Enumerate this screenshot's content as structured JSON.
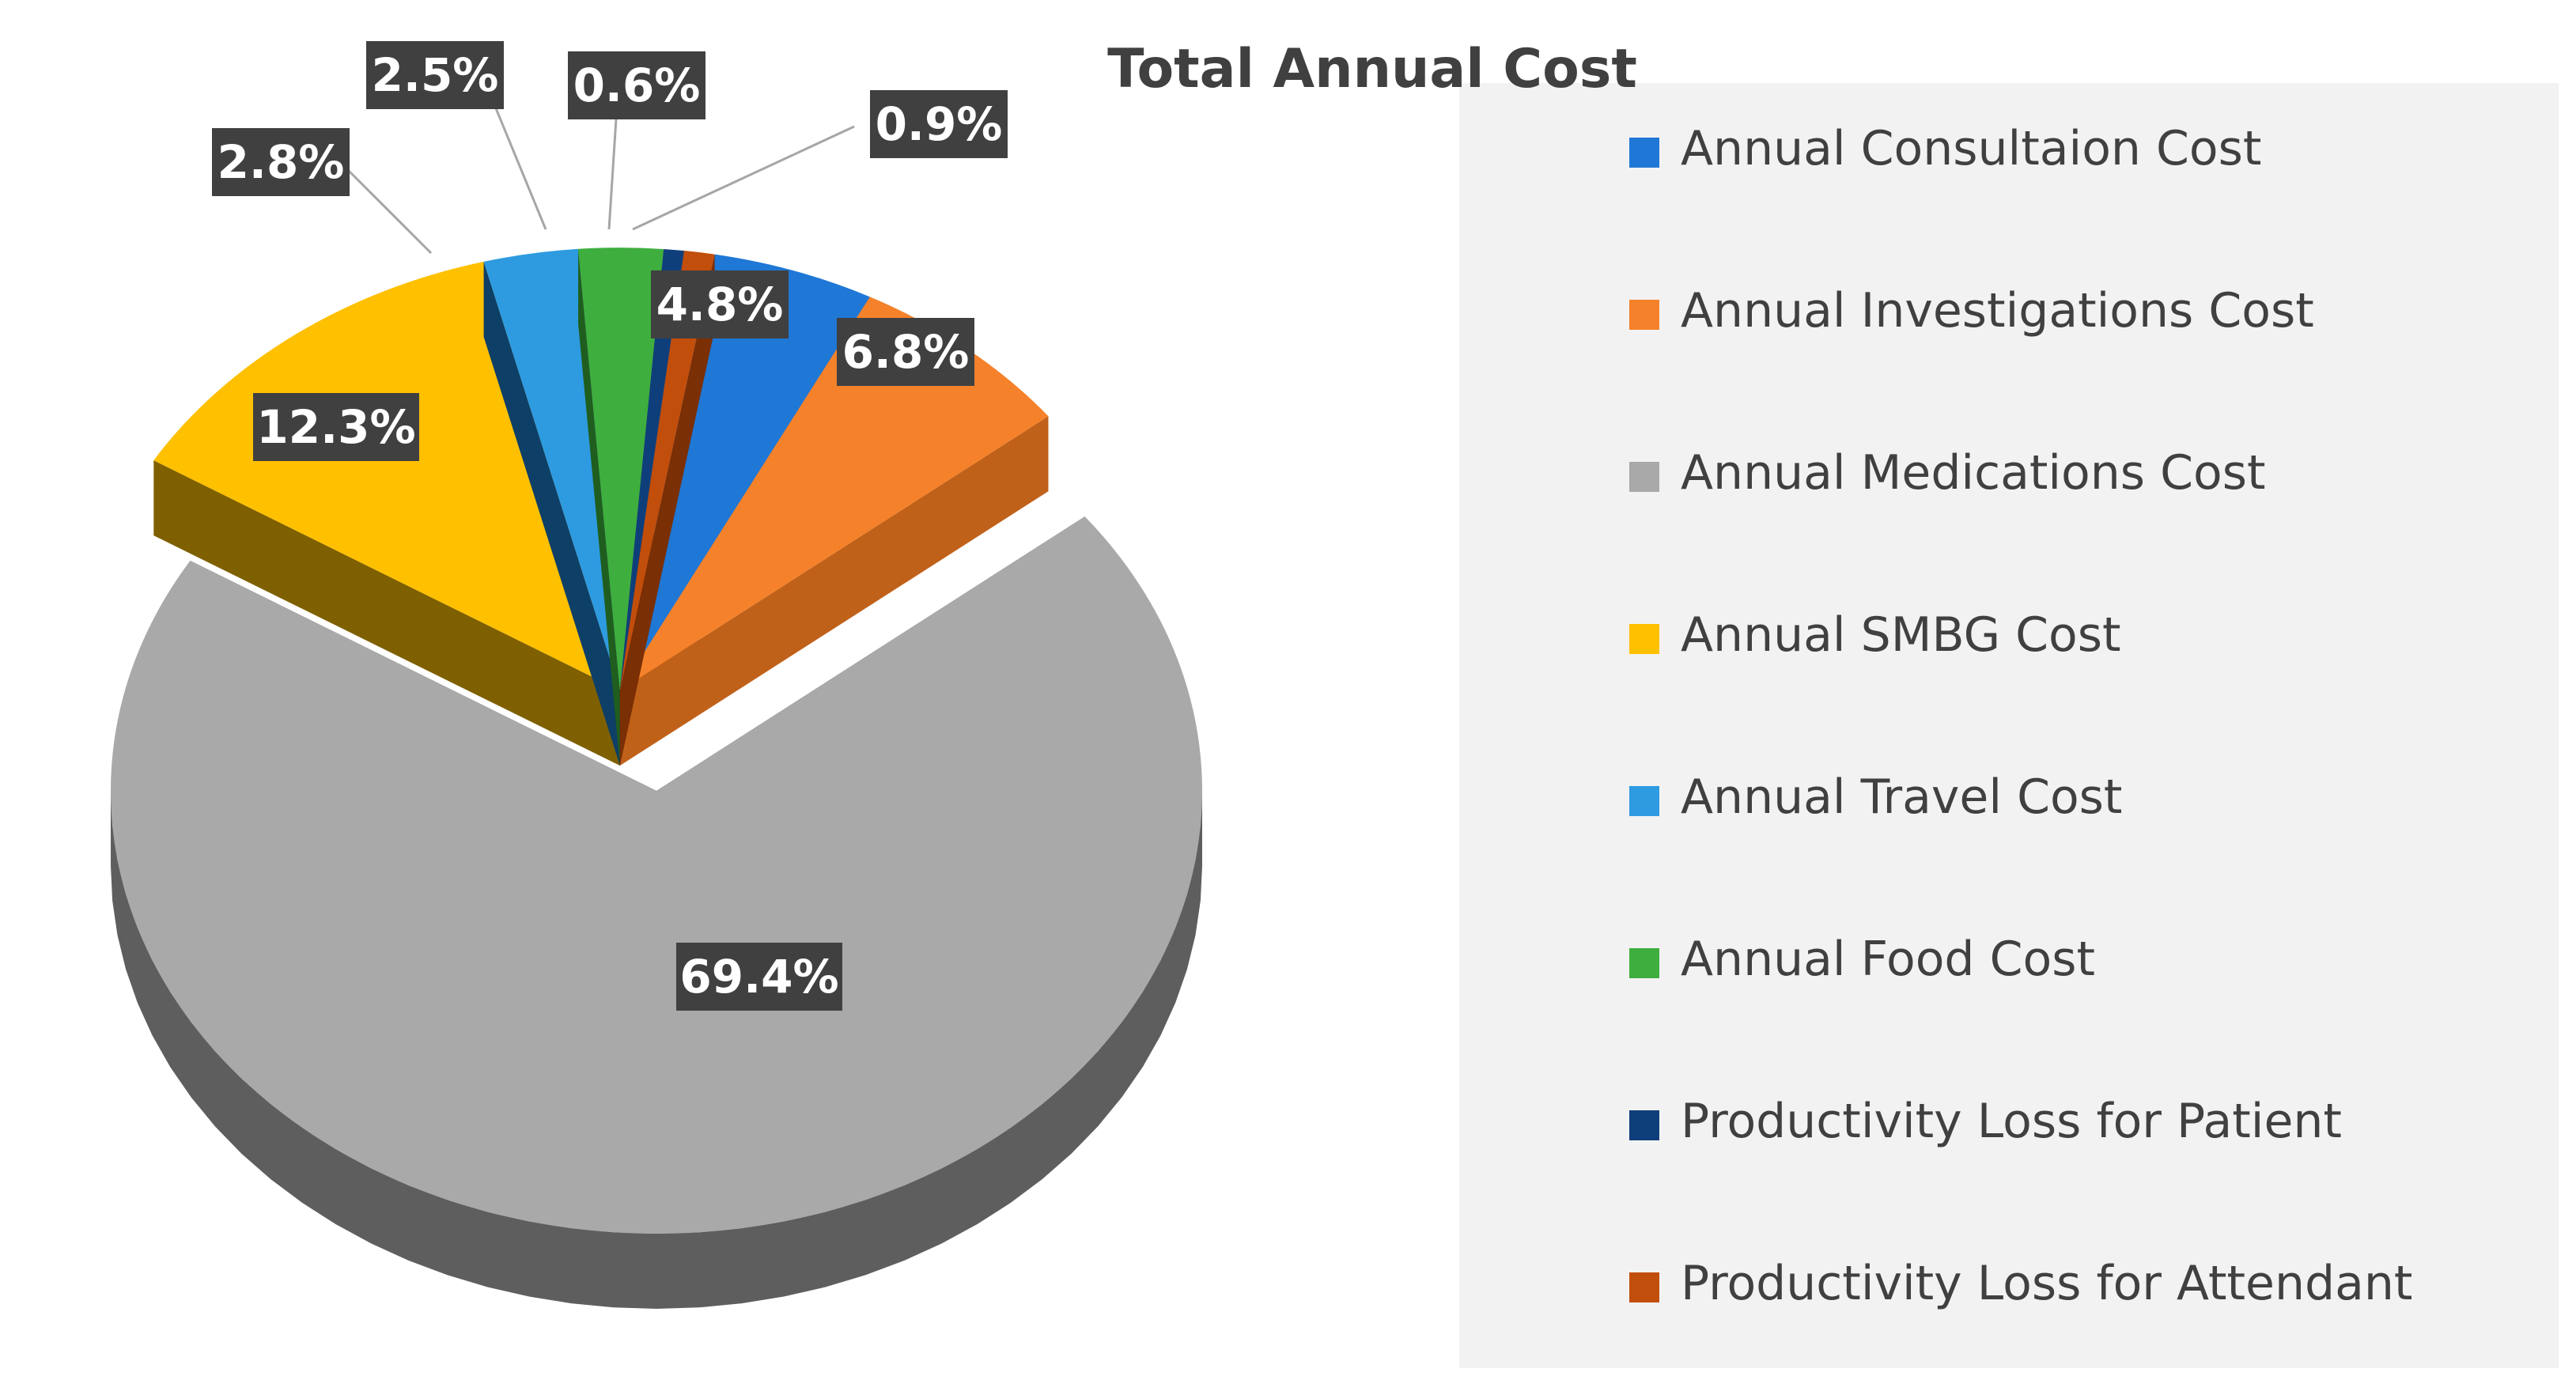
{
  "chart_data": {
    "type": "pie",
    "title": "Total Annual Cost",
    "series": [
      {
        "name": "Annual Consultaion Cost",
        "value": 4.8,
        "label": "4.8%",
        "color": "#1f77d6",
        "side_color": "#155ba3"
      },
      {
        "name": "Annual  Investigations Cost",
        "value": 6.8,
        "label": "6.8%",
        "color": "#f5822a",
        "side_color": "#c0611a"
      },
      {
        "name": "Annual Medications Cost",
        "value": 69.4,
        "label": "69.4%",
        "color": "#a9a9a9",
        "side_color": "#5e5e5e"
      },
      {
        "name": "Annual SMBG Cost",
        "value": 12.3,
        "label": "12.3%",
        "color": "#ffc000",
        "side_color": "#7f6000"
      },
      {
        "name": "Annual Travel Cost",
        "value": 2.8,
        "label": "2.8%",
        "color": "#2e9be0",
        "side_color": "#0e3f66"
      },
      {
        "name": "Annual Food Cost",
        "value": 2.5,
        "label": "2.5%",
        "color": "#3eae3e",
        "side_color": "#1f5e1f"
      },
      {
        "name": "Productivity Loss for Patient",
        "value": 0.6,
        "label": "0.6%",
        "color": "#0f3f7a",
        "side_color": "#082448"
      },
      {
        "name": "Productivity Loss  for Attendant",
        "value": 0.9,
        "label": "0.9%",
        "color": "#c24e0c",
        "side_color": "#7a2f05"
      }
    ],
    "legend_position": "right",
    "data_labels": true
  }
}
